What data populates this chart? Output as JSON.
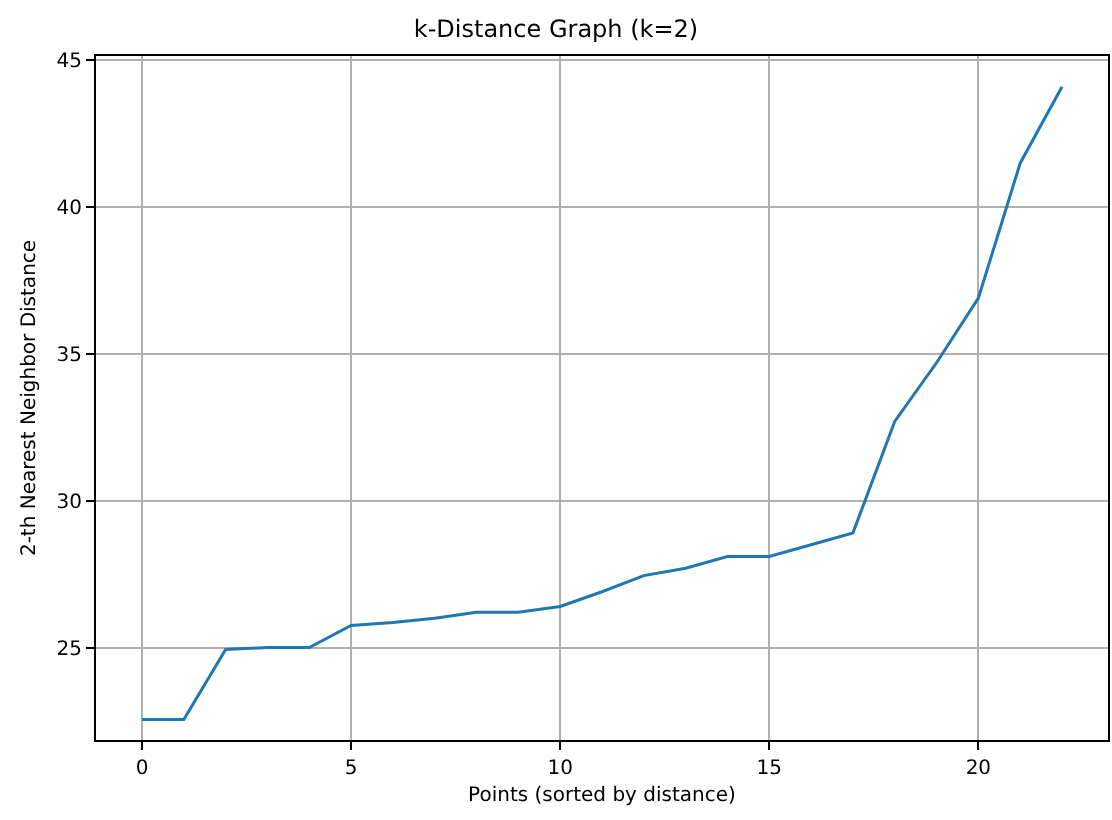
{
  "chart_data": {
    "type": "line",
    "title": "k-Distance Graph (k=2)",
    "xlabel": "Points (sorted by distance)",
    "ylabel": "2-th Nearest Neighbor Distance",
    "x": [
      0,
      1,
      2,
      3,
      4,
      5,
      6,
      7,
      8,
      9,
      10,
      11,
      12,
      13,
      14,
      15,
      16,
      17,
      18,
      19,
      20,
      21,
      22
    ],
    "series": [
      {
        "color": "#1f77b4",
        "values": [
          22.55,
          22.55,
          24.93,
          25.0,
          25.0,
          25.75,
          25.85,
          26.0,
          26.2,
          26.2,
          26.4,
          26.9,
          27.45,
          27.7,
          28.1,
          28.1,
          28.5,
          28.9,
          32.7,
          34.7,
          36.9,
          41.5,
          44.1
        ]
      }
    ],
    "xlim": [
      -1.1,
      23.1
    ],
    "xticks": [
      0,
      5,
      10,
      15,
      20
    ],
    "ylim": [
      21.85,
      45.15
    ],
    "yticks": [
      25,
      30,
      35,
      40,
      45
    ],
    "grid": true,
    "marker": "none",
    "line_style": "solid"
  }
}
